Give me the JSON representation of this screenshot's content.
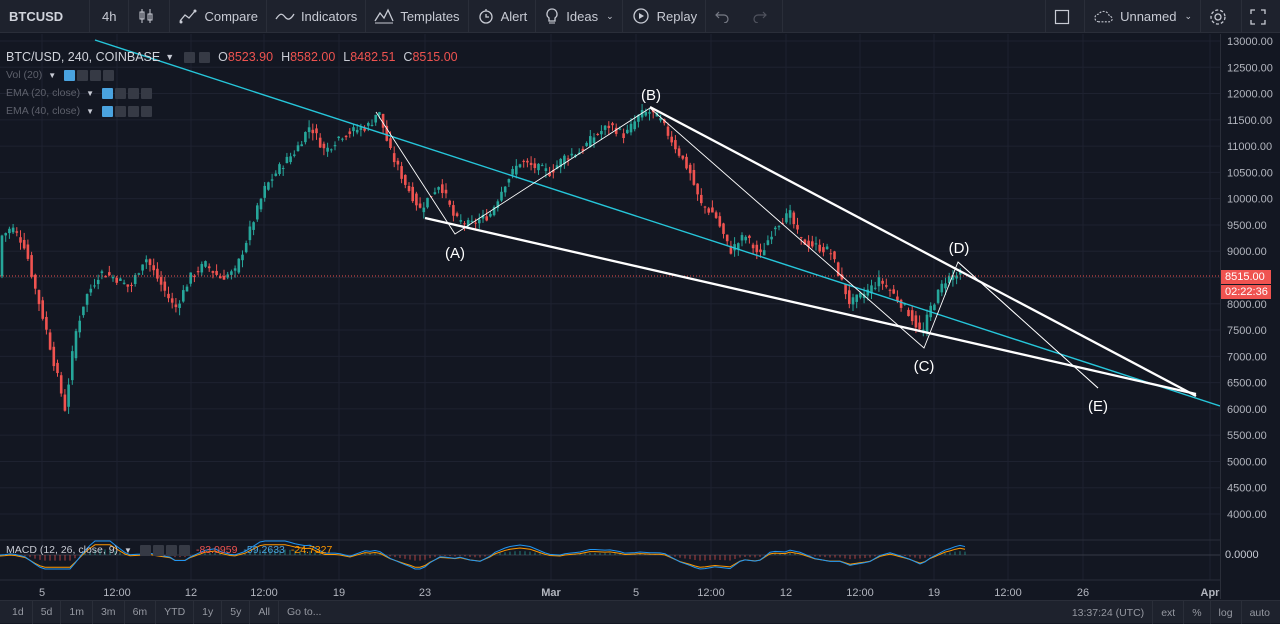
{
  "toolbar": {
    "symbol": "BTCUSD",
    "interval": "4h",
    "compare": "Compare",
    "indicators": "Indicators",
    "templates": "Templates",
    "alert": "Alert",
    "ideas": "Ideas",
    "replay": "Replay",
    "layout_name": "Unnamed"
  },
  "legend": {
    "symbol": "BTC/USD, 240, COINBASE",
    "open_label": "O",
    "open": "8523.90",
    "high_label": "H",
    "high": "8582.00",
    "low_label": "L",
    "low": "8482.51",
    "close_label": "C",
    "close": "8515.00"
  },
  "indicators": [
    {
      "label": "Vol (20)"
    },
    {
      "label": "EMA (20, close)"
    },
    {
      "label": "EMA (40, close)"
    }
  ],
  "macd": {
    "label": "MACD (12, 26, close, 9)",
    "v1": "-83.0959",
    "v2": "-59.2633",
    "v3": "-24.7327",
    "zero": "0.0000"
  },
  "price_axis": [
    "13000.00",
    "12500.00",
    "12000.00",
    "11500.00",
    "11000.00",
    "10500.00",
    "10000.00",
    "9500.00",
    "9000.00",
    "8500.00",
    "8000.00",
    "7500.00",
    "7000.00",
    "6500.00",
    "6000.00",
    "5500.00",
    "5000.00",
    "4500.00",
    "4000.00"
  ],
  "price_tags": {
    "last_price": "8515.00",
    "countdown": "02:22:36"
  },
  "time_axis": [
    {
      "label": "5",
      "x": 42
    },
    {
      "label": "12:00",
      "x": 117
    },
    {
      "label": "12",
      "x": 191
    },
    {
      "label": "12:00",
      "x": 264
    },
    {
      "label": "19",
      "x": 339
    },
    {
      "label": "23",
      "x": 425
    },
    {
      "label": "Mar",
      "x": 551
    },
    {
      "label": "5",
      "x": 636
    },
    {
      "label": "12:00",
      "x": 711
    },
    {
      "label": "12",
      "x": 786
    },
    {
      "label": "12:00",
      "x": 860
    },
    {
      "label": "19",
      "x": 934
    },
    {
      "label": "12:00",
      "x": 1008
    },
    {
      "label": "26",
      "x": 1083
    },
    {
      "label": "Apr",
      "x": 1210
    }
  ],
  "wave_labels": [
    "(A)",
    "(B)",
    "(C)",
    "(D)",
    "(E)"
  ],
  "bottom": {
    "ranges": [
      "1d",
      "5d",
      "1m",
      "3m",
      "6m",
      "YTD",
      "1y",
      "5y",
      "All"
    ],
    "goto": "Go to...",
    "time": "13:37:24 (UTC)",
    "ext": "ext",
    "percent": "%",
    "log": "log",
    "auto": "auto"
  },
  "colors": {
    "up": "#26a69a",
    "down": "#ef5350",
    "background": "#131722",
    "trendline": "#26c6da"
  }
}
